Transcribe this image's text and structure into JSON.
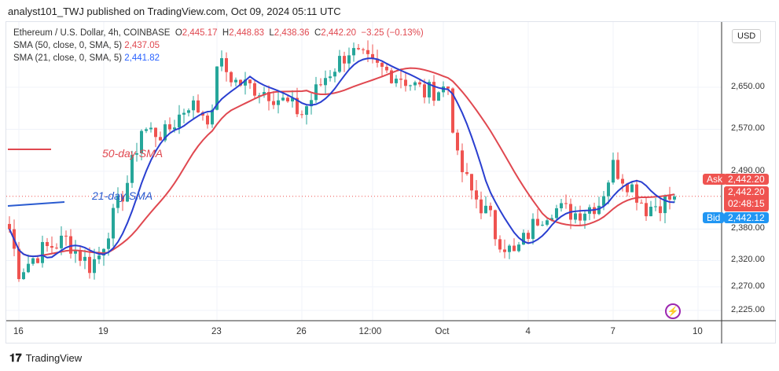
{
  "publisher": "analyst101_TWJ published on TradingView.com, Oct 09, 2024 05:11 UTC",
  "symbol": "Ethereum / U.S. Dollar, 4h, COINBASE",
  "ohlc": {
    "o": "O",
    "ov": "2,445.17",
    "h": "H",
    "hv": "2,448.83",
    "l": "L",
    "lv": "2,438.36",
    "c": "C",
    "cv": "2,442.20",
    "chg": "−3.25 (−0.13%)"
  },
  "sma50": {
    "label": "SMA (50, close, 0, SMA, 5)",
    "value": "2,437.05"
  },
  "sma21": {
    "label": "SMA (21, close, 0, SMA, 5)",
    "value": "2,441.82"
  },
  "currency": "USD",
  "ask": {
    "label": "Ask",
    "value": "2,442.20"
  },
  "last": {
    "value": "2,442.20",
    "countdown": "02:48:15"
  },
  "bid": {
    "label": "Bid",
    "value": "2,442.12"
  },
  "annotations": {
    "sma50": "50-day SMA",
    "sma21": "21-day SMA"
  },
  "footer": "TradingView",
  "colors": {
    "up": "#26a69a",
    "down": "#ef5350",
    "sma50": "#e04850",
    "sma21": "#2a3fd0"
  },
  "chart_data": {
    "type": "candlestick",
    "title": "Ethereum / U.S. Dollar, 4h, COINBASE",
    "price_ticks": [
      "2,650.00",
      "2,570.00",
      "2,490.00",
      "2,380.00",
      "2,320.00",
      "2,270.00",
      "2,225.00"
    ],
    "price_tick_values": [
      2650,
      2570,
      2490,
      2380,
      2320,
      2270,
      2225
    ],
    "x_ticks": [
      "16",
      "19",
      "23",
      "26",
      "12:00",
      "Oct",
      "4",
      "7",
      "10"
    ],
    "x_tick_candle_index": [
      2,
      20,
      44,
      62,
      77,
      92,
      110,
      128,
      146
    ],
    "ylim": [
      2200,
      2760
    ],
    "close_keypoints": [
      [
        0,
        2380
      ],
      [
        2,
        2300
      ],
      [
        7,
        2340
      ],
      [
        12,
        2360
      ],
      [
        17,
        2310
      ],
      [
        19,
        2330
      ],
      [
        21,
        2380
      ],
      [
        25,
        2470
      ],
      [
        28,
        2570
      ],
      [
        33,
        2560
      ],
      [
        38,
        2620
      ],
      [
        43,
        2590
      ],
      [
        44,
        2700
      ],
      [
        48,
        2660
      ],
      [
        55,
        2640
      ],
      [
        62,
        2600
      ],
      [
        67,
        2670
      ],
      [
        72,
        2720
      ],
      [
        77,
        2690
      ],
      [
        83,
        2670
      ],
      [
        88,
        2640
      ],
      [
        93,
        2650
      ],
      [
        95,
        2510
      ],
      [
        98,
        2450
      ],
      [
        102,
        2400
      ],
      [
        103,
        2370
      ],
      [
        107,
        2330
      ],
      [
        112,
        2400
      ],
      [
        115,
        2420
      ],
      [
        120,
        2410
      ],
      [
        125,
        2430
      ],
      [
        128,
        2500
      ],
      [
        132,
        2460
      ],
      [
        135,
        2420
      ],
      [
        138,
        2430
      ],
      [
        141,
        2442
      ]
    ],
    "series": [
      {
        "name": "SMA 50"
      },
      {
        "name": "SMA 21"
      }
    ]
  }
}
